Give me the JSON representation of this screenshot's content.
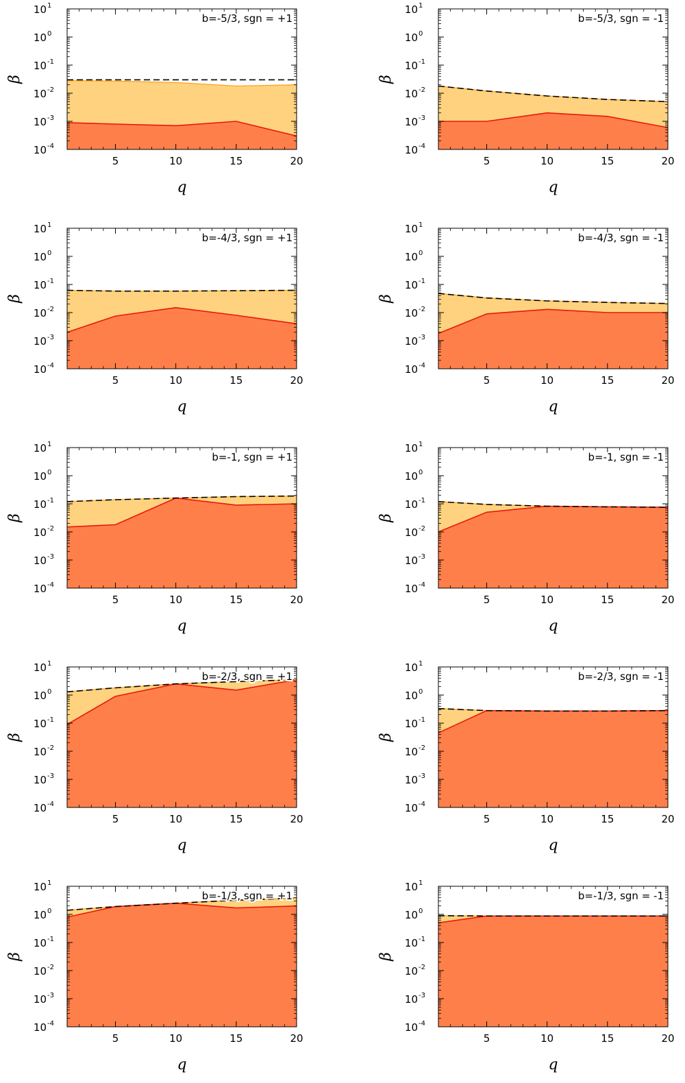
{
  "colors": {
    "fill_upper": "#FFD27F",
    "fill_lower": "#FF7F4A",
    "line_upper_solid": "#FFA11A",
    "line_lower": "#E8180C",
    "dashed_line": "#000000"
  },
  "chart_data": [
    {
      "type": "area",
      "title": "b=-5/3, sgn = +1",
      "xlabel": "q",
      "ylabel": "β",
      "yscale": "log",
      "xlim": [
        1,
        20
      ],
      "ylim": [
        0.0001,
        10
      ],
      "xticks": [
        "5",
        "10",
        "15",
        "20"
      ],
      "yticks": [
        "10",
        "10",
        "10",
        "10",
        "10",
        "10"
      ],
      "ytick_exponents": [
        "-4",
        "-3",
        "-2",
        "-1",
        "0",
        "1"
      ],
      "x": [
        1,
        5,
        10,
        15,
        20
      ],
      "series": [
        {
          "values": [
            0.028,
            0.027,
            0.024,
            0.018,
            0.02
          ]
        },
        {
          "values": [
            0.0009,
            0.0008,
            0.0007,
            0.001,
            0.0003
          ]
        },
        {
          "values": [
            0.03,
            0.03,
            0.03,
            0.03,
            0.03
          ]
        }
      ]
    },
    {
      "type": "area",
      "title": "b=-5/3, sgn = -1",
      "xlabel": "q",
      "ylabel": "β",
      "yscale": "log",
      "xlim": [
        1,
        20
      ],
      "ylim": [
        0.0001,
        10
      ],
      "xticks": [
        "5",
        "10",
        "15",
        "20"
      ],
      "yticks": [
        "10",
        "10",
        "10",
        "10",
        "10",
        "10"
      ],
      "ytick_exponents": [
        "-4",
        "-3",
        "-2",
        "-1",
        "0",
        "1"
      ],
      "x": [
        1,
        5,
        10,
        15,
        20
      ],
      "series": [
        {
          "values": [
            0.018,
            0.012,
            0.008,
            0.006,
            0.005
          ]
        },
        {
          "values": [
            0.001,
            0.001,
            0.002,
            0.0015,
            0.0006
          ]
        },
        {
          "values": [
            0.018,
            0.012,
            0.008,
            0.006,
            0.005
          ]
        }
      ]
    },
    {
      "type": "area",
      "title": "b=-4/3, sgn = +1",
      "xlabel": "q",
      "ylabel": "β",
      "yscale": "log",
      "xlim": [
        1,
        20
      ],
      "ylim": [
        0.0001,
        10
      ],
      "xticks": [
        "5",
        "10",
        "15",
        "20"
      ],
      "yticks": [
        "10",
        "10",
        "10",
        "10",
        "10",
        "10"
      ],
      "ytick_exponents": [
        "-4",
        "-3",
        "-2",
        "-1",
        "0",
        "1"
      ],
      "x": [
        1,
        5,
        10,
        15,
        20
      ],
      "series": [
        {
          "values": [
            0.062,
            0.058,
            0.058,
            0.06,
            0.062
          ]
        },
        {
          "values": [
            0.002,
            0.0075,
            0.015,
            0.008,
            0.004
          ]
        },
        {
          "values": [
            0.062,
            0.058,
            0.058,
            0.06,
            0.062
          ]
        }
      ]
    },
    {
      "type": "area",
      "title": "b=-4/3, sgn = -1",
      "xlabel": "q",
      "ylabel": "β",
      "yscale": "log",
      "xlim": [
        1,
        20
      ],
      "ylim": [
        0.0001,
        10
      ],
      "xticks": [
        "5",
        "10",
        "15",
        "20"
      ],
      "yticks": [
        "10",
        "10",
        "10",
        "10",
        "10",
        "10"
      ],
      "ytick_exponents": [
        "-4",
        "-3",
        "-2",
        "-1",
        "0",
        "1"
      ],
      "x": [
        1,
        5,
        10,
        15,
        20
      ],
      "series": [
        {
          "values": [
            0.048,
            0.033,
            0.026,
            0.023,
            0.021
          ]
        },
        {
          "values": [
            0.0018,
            0.009,
            0.013,
            0.01,
            0.01
          ]
        },
        {
          "values": [
            0.048,
            0.033,
            0.026,
            0.023,
            0.021
          ]
        }
      ]
    },
    {
      "type": "area",
      "title": "b=-1, sgn = +1",
      "xlabel": "q",
      "ylabel": "β",
      "yscale": "log",
      "xlim": [
        1,
        20
      ],
      "ylim": [
        0.0001,
        10
      ],
      "xticks": [
        "5",
        "10",
        "15",
        "20"
      ],
      "yticks": [
        "10",
        "10",
        "10",
        "10",
        "10",
        "10"
      ],
      "ytick_exponents": [
        "-4",
        "-3",
        "-2",
        "-1",
        "0",
        "1"
      ],
      "x": [
        1,
        5,
        10,
        15,
        20
      ],
      "series": [
        {
          "values": [
            0.12,
            0.14,
            0.16,
            0.18,
            0.19
          ]
        },
        {
          "values": [
            0.015,
            0.018,
            0.16,
            0.09,
            0.1
          ]
        },
        {
          "values": [
            0.12,
            0.14,
            0.16,
            0.18,
            0.19
          ]
        }
      ]
    },
    {
      "type": "area",
      "title": "b=-1, sgn = -1",
      "xlabel": "q",
      "ylabel": "β",
      "yscale": "log",
      "xlim": [
        1,
        20
      ],
      "ylim": [
        0.0001,
        10
      ],
      "xticks": [
        "5",
        "10",
        "15",
        "20"
      ],
      "yticks": [
        "10",
        "10",
        "10",
        "10",
        "10",
        "10"
      ],
      "ytick_exponents": [
        "-4",
        "-3",
        "-2",
        "-1",
        "0",
        "1"
      ],
      "x": [
        1,
        5,
        10,
        15,
        20
      ],
      "series": [
        {
          "values": [
            0.12,
            0.095,
            0.082,
            0.078,
            0.075
          ]
        },
        {
          "values": [
            0.01,
            0.05,
            0.082,
            0.078,
            0.075
          ]
        },
        {
          "values": [
            0.12,
            0.095,
            0.082,
            0.078,
            0.075
          ]
        }
      ]
    },
    {
      "type": "area",
      "title": "b=-2/3, sgn = +1",
      "xlabel": "q",
      "ylabel": "β",
      "yscale": "log",
      "xlim": [
        1,
        20
      ],
      "ylim": [
        0.0001,
        10
      ],
      "xticks": [
        "5",
        "10",
        "15",
        "20"
      ],
      "yticks": [
        "10",
        "10",
        "10",
        "10",
        "10",
        "10"
      ],
      "ytick_exponents": [
        "-4",
        "-3",
        "-2",
        "-1",
        "0",
        "1"
      ],
      "x": [
        1,
        5,
        10,
        15,
        20
      ],
      "series": [
        {
          "values": [
            1.3,
            1.8,
            2.5,
            3.0,
            3.5
          ]
        },
        {
          "values": [
            0.09,
            0.9,
            2.5,
            1.5,
            3.5
          ]
        },
        {
          "values": [
            1.3,
            1.8,
            2.5,
            3.0,
            3.5
          ]
        }
      ]
    },
    {
      "type": "area",
      "title": "b=-2/3, sgn = -1",
      "xlabel": "q",
      "ylabel": "β",
      "yscale": "log",
      "xlim": [
        1,
        20
      ],
      "ylim": [
        0.0001,
        10
      ],
      "xticks": [
        "5",
        "10",
        "15",
        "20"
      ],
      "yticks": [
        "10",
        "10",
        "10",
        "10",
        "10",
        "10"
      ],
      "ytick_exponents": [
        "-4",
        "-3",
        "-2",
        "-1",
        "0",
        "1"
      ],
      "x": [
        1,
        5,
        10,
        15,
        20
      ],
      "series": [
        {
          "values": [
            0.33,
            0.28,
            0.27,
            0.27,
            0.28
          ]
        },
        {
          "values": [
            0.045,
            0.28,
            0.27,
            0.27,
            0.28
          ]
        },
        {
          "values": [
            0.33,
            0.28,
            0.27,
            0.27,
            0.28
          ]
        }
      ]
    },
    {
      "type": "area",
      "title": "b=-1/3, sgn = +1",
      "xlabel": "q",
      "ylabel": "β",
      "yscale": "log",
      "xlim": [
        1,
        20
      ],
      "ylim": [
        0.0001,
        10
      ],
      "xticks": [
        "5",
        "10",
        "15",
        "20"
      ],
      "yticks": [
        "10",
        "10",
        "10",
        "10",
        "10",
        "10"
      ],
      "ytick_exponents": [
        "-4",
        "-3",
        "-2",
        "-1",
        "0",
        "1"
      ],
      "x": [
        1,
        5,
        10,
        15,
        20
      ],
      "series": [
        {
          "values": [
            1.4,
            1.9,
            2.5,
            3.2,
            3.8
          ]
        },
        {
          "values": [
            0.8,
            1.9,
            2.5,
            1.7,
            2.0
          ]
        },
        {
          "values": [
            1.4,
            1.9,
            2.5,
            3.2,
            3.8
          ]
        }
      ]
    },
    {
      "type": "area",
      "title": "b=-1/3, sgn = -1",
      "xlabel": "q",
      "ylabel": "β",
      "yscale": "log",
      "xlim": [
        1,
        20
      ],
      "ylim": [
        0.0001,
        10
      ],
      "xticks": [
        "5",
        "10",
        "15",
        "20"
      ],
      "yticks": [
        "10",
        "10",
        "10",
        "10",
        "10",
        "10"
      ],
      "ytick_exponents": [
        "-4",
        "-3",
        "-2",
        "-1",
        "0",
        "1"
      ],
      "x": [
        1,
        5,
        10,
        15,
        20
      ],
      "series": [
        {
          "values": [
            0.9,
            0.88,
            0.88,
            0.88,
            0.88
          ]
        },
        {
          "values": [
            0.5,
            0.88,
            0.88,
            0.88,
            0.88
          ]
        },
        {
          "values": [
            0.9,
            0.88,
            0.88,
            0.88,
            0.88
          ]
        }
      ]
    }
  ]
}
